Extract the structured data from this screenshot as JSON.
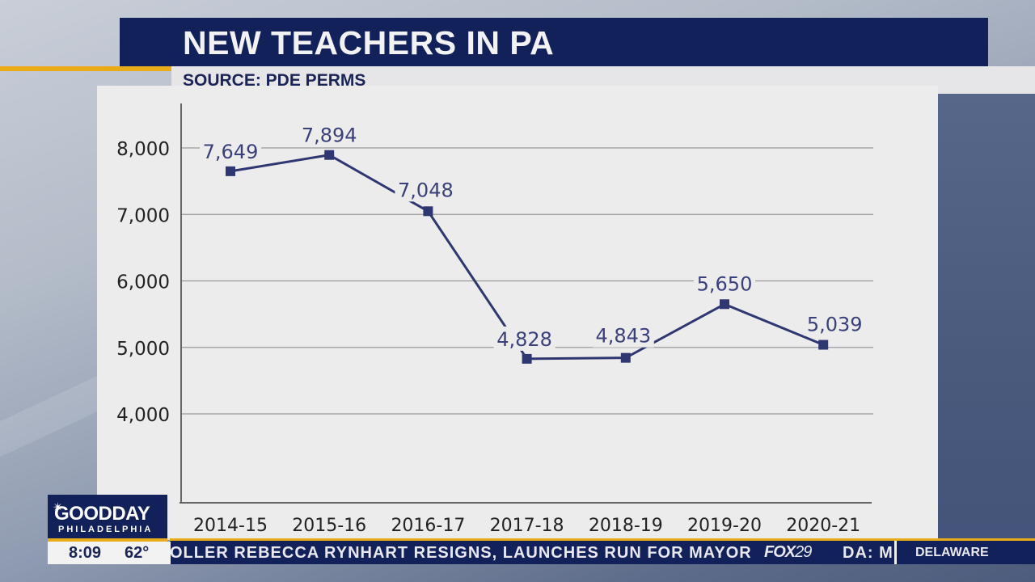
{
  "header": {
    "title": "NEW TEACHERS IN PA",
    "source": "SOURCE: PDE PERMS"
  },
  "chart_data": {
    "type": "line",
    "title": "NEW TEACHERS IN PA",
    "subtitle": "SOURCE: PDE PERMS",
    "categories": [
      "2014-15",
      "2015-16",
      "2016-17",
      "2017-18",
      "2018-19",
      "2019-20",
      "2020-21"
    ],
    "values": [
      7649,
      7894,
      7048,
      4828,
      4843,
      5650,
      5039
    ],
    "value_labels": [
      "7,649",
      "7,894",
      "7,048",
      "4,828",
      "4,843",
      "5,650",
      "5,039"
    ],
    "y_ticks": [
      4000,
      5000,
      6000,
      7000,
      8000
    ],
    "y_tick_labels": [
      "4,000",
      "5,000",
      "6,000",
      "7,000",
      "8,000"
    ],
    "xlabel": "",
    "ylabel": "",
    "ylim": [
      2700,
      8700
    ],
    "grid": true,
    "legend": "none",
    "line_color": "#2e3772",
    "marker": "square"
  },
  "show_logo": {
    "name": "GOODDAY",
    "part1": "GOOD",
    "part2": "DAY",
    "city": "PHILADELPHIA"
  },
  "status": {
    "time": "8:09",
    "temperature": "62°"
  },
  "ticker": {
    "headline": "OLLER REBECCA RYNHART RESIGNS, LAUNCHES RUN FOR MAYOR",
    "network_logo_text": "FOX",
    "network_logo_num": "29",
    "continuation": "DA: M",
    "region": "DELAWARE"
  },
  "colors": {
    "navy": "#13215a",
    "gold": "#e9ab17",
    "panel": "#ececec",
    "series": "#2e3772"
  }
}
